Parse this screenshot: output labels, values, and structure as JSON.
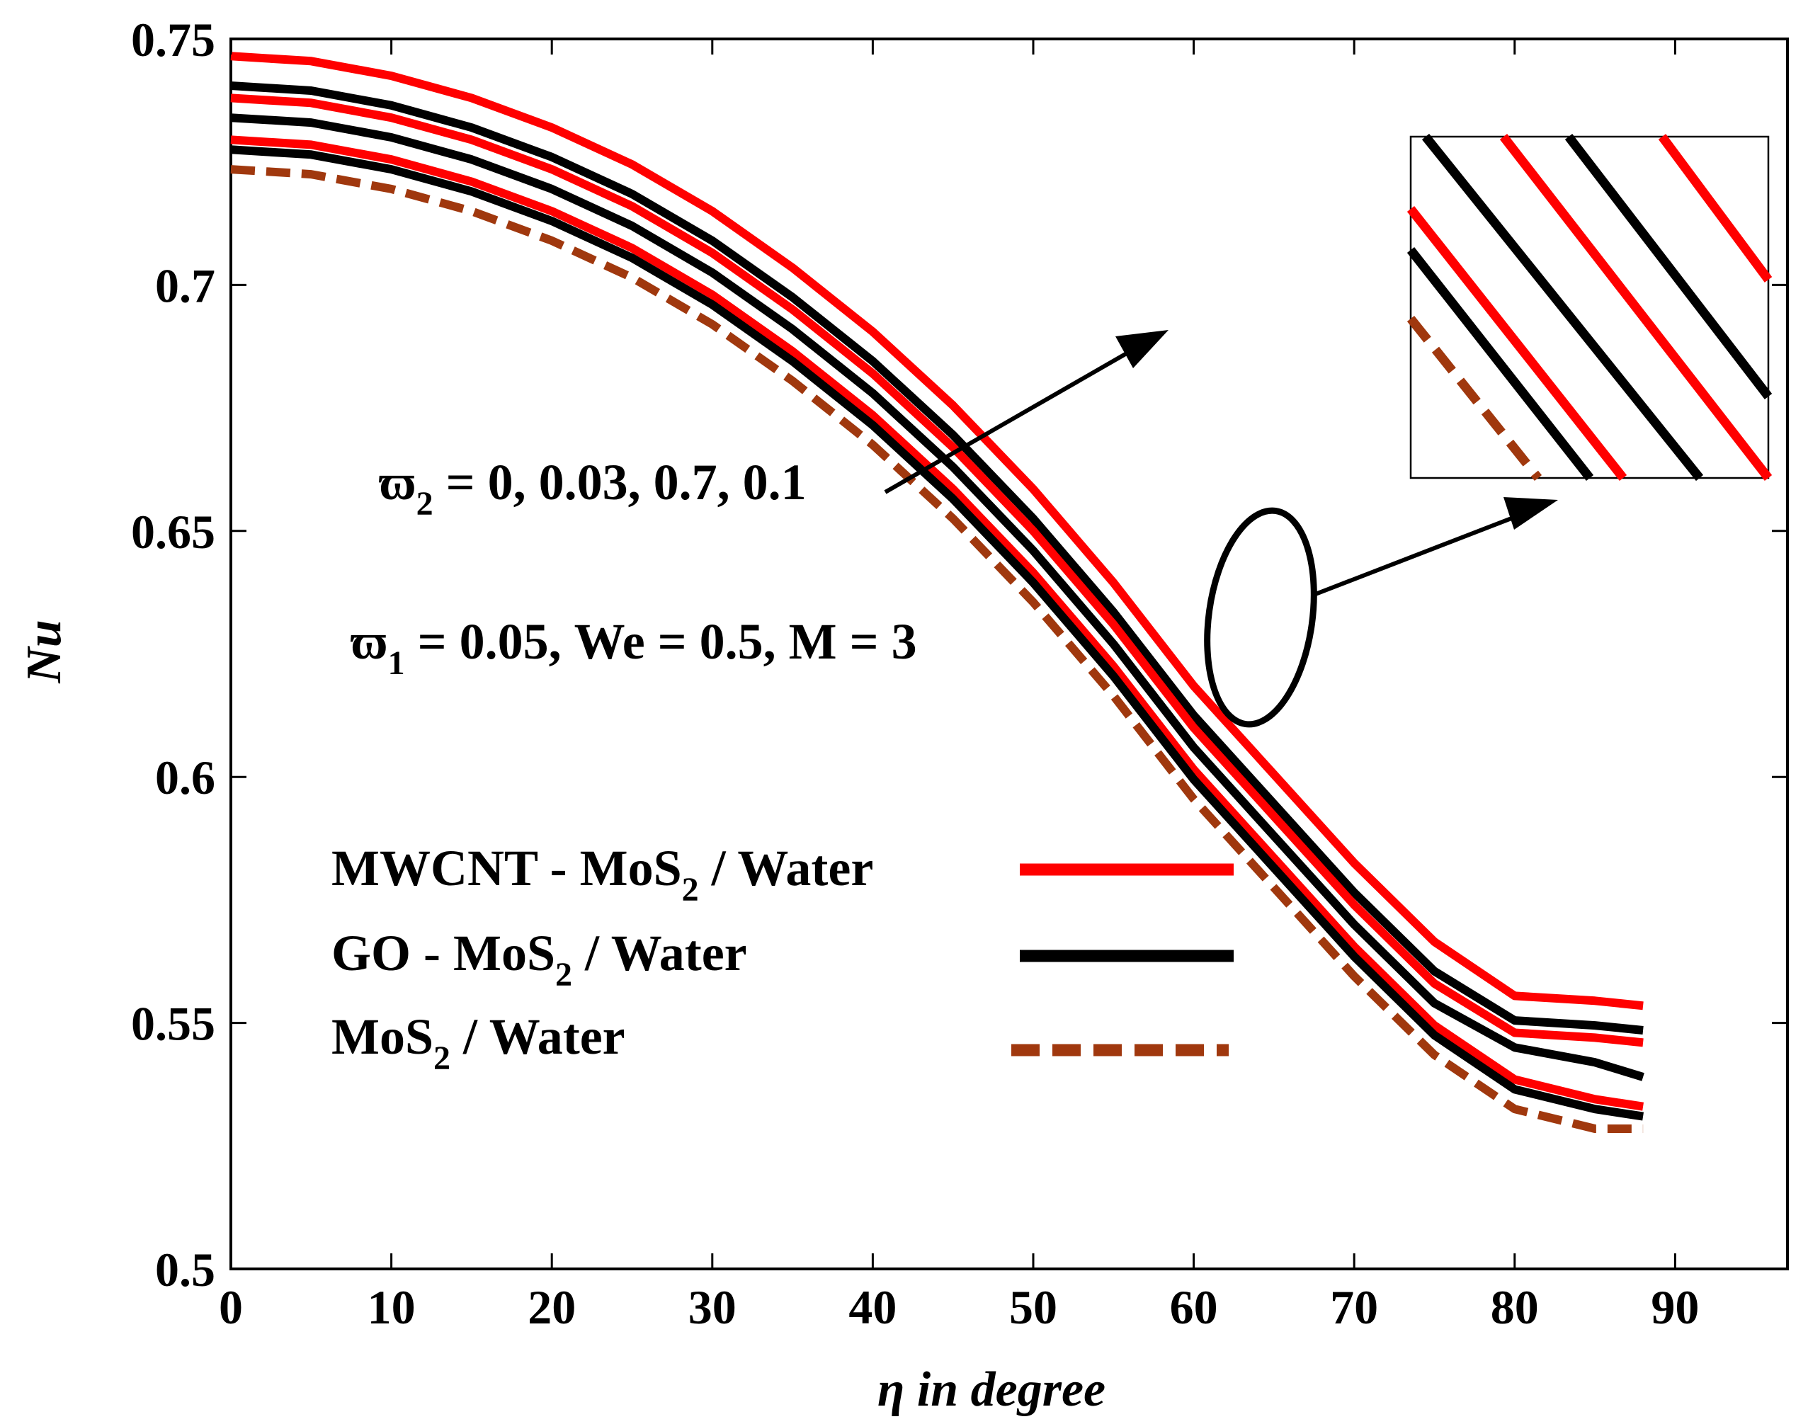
{
  "chart_data": {
    "type": "line",
    "title": "",
    "xlabel": "η in degree",
    "ylabel": "Nu",
    "xlim": [
      0,
      97
    ],
    "ylim": [
      0.5,
      0.75
    ],
    "xticks": [
      "0",
      "10",
      "20",
      "30",
      "40",
      "50",
      "60",
      "70",
      "80",
      "90"
    ],
    "yticks": [
      "0.5",
      "0.55",
      "0.6",
      "0.65",
      "0.7",
      "0.75"
    ],
    "x": [
      0,
      5,
      10,
      15,
      20,
      25,
      30,
      35,
      40,
      45,
      50,
      55,
      60,
      65,
      70,
      75,
      80,
      85,
      88
    ],
    "series": [
      {
        "name": "MWCNT - MoS2 / Water (ϖ2 = 0.1)",
        "color": "#ff0000",
        "dash": false,
        "values": [
          0.7465,
          0.7455,
          0.7425,
          0.738,
          0.732,
          0.7245,
          0.715,
          0.7035,
          0.6905,
          0.6755,
          0.6585,
          0.6395,
          0.6185,
          0.6005,
          0.5825,
          0.5665,
          0.5555,
          0.5545,
          0.5535
        ]
      },
      {
        "name": "GO - MoS2 / Water (ϖ2 = 0.1)",
        "color": "#000000",
        "dash": false,
        "values": [
          0.7405,
          0.7395,
          0.7365,
          0.732,
          0.726,
          0.7185,
          0.709,
          0.6975,
          0.6845,
          0.6695,
          0.6525,
          0.6335,
          0.6125,
          0.5945,
          0.5765,
          0.5605,
          0.5505,
          0.5495,
          0.5485
        ]
      },
      {
        "name": "MWCNT - MoS2 / Water (ϖ2 = 0.7)",
        "color": "#ff0000",
        "dash": false,
        "values": [
          0.738,
          0.737,
          0.734,
          0.7295,
          0.7235,
          0.716,
          0.7065,
          0.695,
          0.682,
          0.667,
          0.65,
          0.631,
          0.61,
          0.592,
          0.574,
          0.558,
          0.548,
          0.547,
          0.546
        ]
      },
      {
        "name": "GO - MoS2 / Water (ϖ2 = 0.7)",
        "color": "#000000",
        "dash": false,
        "values": [
          0.734,
          0.733,
          0.73,
          0.7255,
          0.7195,
          0.712,
          0.7025,
          0.691,
          0.678,
          0.663,
          0.646,
          0.627,
          0.606,
          0.588,
          0.57,
          0.554,
          0.545,
          0.542,
          0.539
        ]
      },
      {
        "name": "MWCNT - MoS2 / Water (ϖ2 = 0.03)",
        "color": "#ff0000",
        "dash": false,
        "values": [
          0.7295,
          0.7285,
          0.7255,
          0.721,
          0.715,
          0.7075,
          0.698,
          0.6865,
          0.6735,
          0.6585,
          0.6415,
          0.6225,
          0.6015,
          0.5835,
          0.5655,
          0.5495,
          0.5385,
          0.5345,
          0.533
        ]
      },
      {
        "name": "GO - MoS2 / Water (ϖ2 = 0.03)",
        "color": "#000000",
        "dash": false,
        "values": [
          0.7275,
          0.7265,
          0.7235,
          0.719,
          0.713,
          0.7055,
          0.696,
          0.6845,
          0.6715,
          0.6565,
          0.6395,
          0.6205,
          0.5995,
          0.5815,
          0.5635,
          0.5475,
          0.5365,
          0.5325,
          0.531
        ]
      },
      {
        "name": "MoS2 / Water",
        "color": "#a0380e",
        "dash": true,
        "values": [
          0.7235,
          0.7225,
          0.7195,
          0.715,
          0.709,
          0.7015,
          0.692,
          0.6805,
          0.6675,
          0.6525,
          0.6355,
          0.6165,
          0.5955,
          0.5775,
          0.5595,
          0.5435,
          0.5325,
          0.5285,
          0.5285
        ]
      }
    ],
    "annotations": {
      "omega2_base": "ϖ",
      "omega2_sub": "2",
      "omega2_text": " = 0, 0.03, 0.7, 0.1",
      "omega1_base": "ϖ",
      "omega1_sub": "1",
      "omega1_text": " = 0.05, We = 0.5, M = 3"
    },
    "legend": {
      "placement": "center-left",
      "items": [
        {
          "base": "MWCNT - MoS",
          "sub": "2",
          "tail": " / Water",
          "color": "#ff0000",
          "dash": false
        },
        {
          "base": "GO - MoS",
          "sub": "2",
          "tail": " / Water",
          "color": "#000000",
          "dash": false
        },
        {
          "base": "MoS",
          "sub": "2",
          "tail": " / Water",
          "color": "#a0380e",
          "dash": true
        }
      ]
    },
    "grid": false
  }
}
